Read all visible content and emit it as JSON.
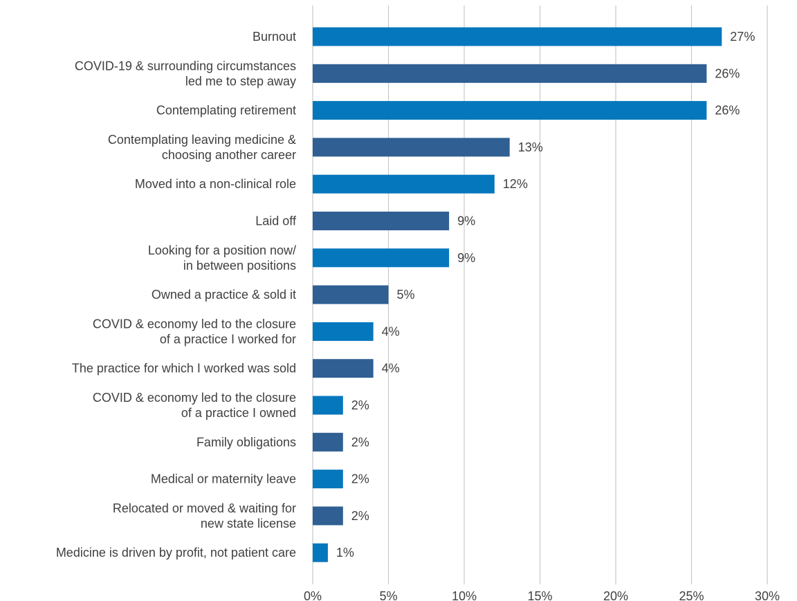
{
  "chart_data": {
    "type": "bar",
    "orientation": "horizontal",
    "categories": [
      [
        "Burnout"
      ],
      [
        "COVID-19 & surrounding circumstances",
        "led me to step away"
      ],
      [
        "Contemplating retirement"
      ],
      [
        "Contemplating leaving medicine &",
        "choosing another career"
      ],
      [
        "Moved into a non-clinical role"
      ],
      [
        "Laid off"
      ],
      [
        "Looking for a position now/",
        "in between positions"
      ],
      [
        "Owned a practice & sold it"
      ],
      [
        "COVID & economy led to the closure",
        "of a practice I worked for"
      ],
      [
        "The practice for which I worked was sold"
      ],
      [
        "COVID & economy led to the closure",
        "of a practice I owned"
      ],
      [
        "Family obligations"
      ],
      [
        "Medical or maternity leave"
      ],
      [
        "Relocated or moved & waiting for",
        "new state license"
      ],
      [
        "Medicine is driven by profit, not patient care"
      ]
    ],
    "values": [
      27,
      26,
      26,
      13,
      12,
      9,
      9,
      5,
      4,
      4,
      2,
      2,
      2,
      2,
      1
    ],
    "value_labels": [
      "27%",
      "26%",
      "26%",
      "13%",
      "12%",
      "9%",
      "9%",
      "5%",
      "4%",
      "4%",
      "2%",
      "2%",
      "2%",
      "2%",
      "1%"
    ],
    "xlim": [
      0,
      30
    ],
    "xticks": [
      0,
      5,
      10,
      15,
      20,
      25,
      30
    ],
    "xtick_labels": [
      "0%",
      "5%",
      "10%",
      "15%",
      "20%",
      "25%",
      "30%"
    ],
    "grid": true,
    "colors": [
      "#0577bd",
      "#2f5f93"
    ],
    "title": "",
    "xlabel": "",
    "ylabel": ""
  }
}
